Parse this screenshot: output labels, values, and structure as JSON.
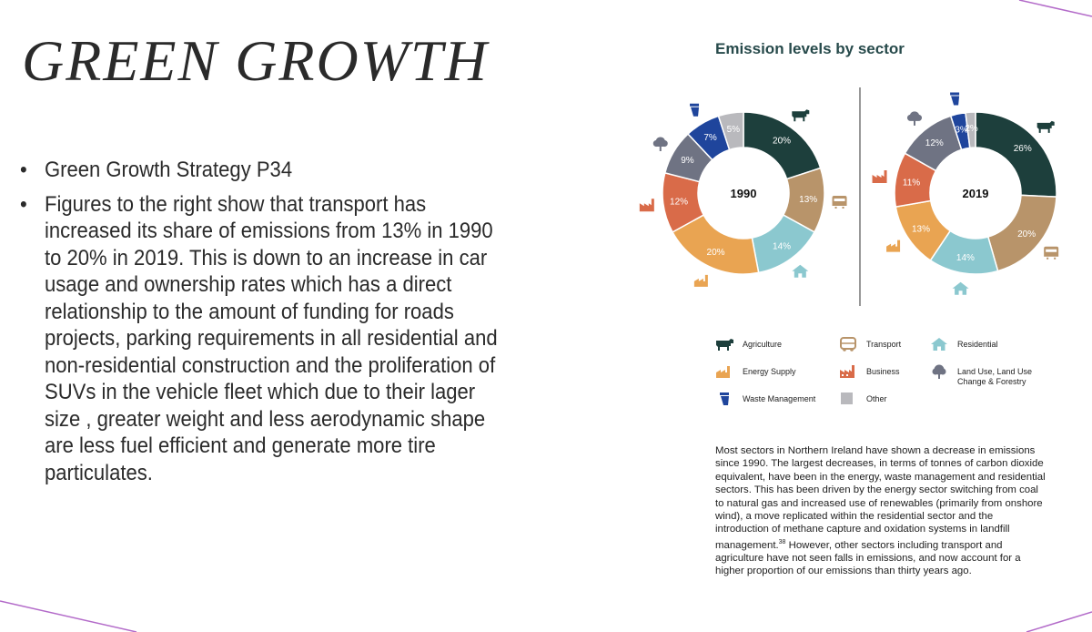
{
  "title": "GREEN GROWTH",
  "bullets": [
    "Green Growth Strategy P34",
    "Figures to the right show that transport has increased its share of emissions from 13% in 1990 to 20% in 2019. This is down to an increase in car usage and ownership rates which has a direct relationship to the amount of funding for roads projects, parking requirements in all residential and non-residential construction and the proliferation of SUVs in the vehicle fleet which due to their lager size , greater weight and less aerodynamic shape are less fuel efficient and generate more tire particulates."
  ],
  "bullet_symbol": "•",
  "colors": {
    "agriculture": "#1d3f3c",
    "transport": "#b8946a",
    "residential": "#8bc8cf",
    "energy_supply": "#e9a452",
    "business": "#d96b49",
    "land_use": "#6f7383",
    "waste_management": "#1f459c",
    "other": "#b9b9bd",
    "accent_line": "#b36bc9"
  },
  "chart_data": {
    "type": "pie",
    "title": "Emission levels by sector",
    "categories": [
      "Agriculture",
      "Transport",
      "Residential",
      "Energy Supply",
      "Business",
      "Land Use, Land Use Change & Forestry",
      "Waste Management",
      "Other"
    ],
    "series": [
      {
        "name": "1990",
        "values": [
          20,
          13,
          14,
          20,
          12,
          9,
          7,
          5
        ],
        "labels": [
          "20%",
          "13%",
          "14%",
          "20%",
          "12%",
          "9%",
          "7%",
          "5%"
        ]
      },
      {
        "name": "2019",
        "values": [
          26,
          20,
          14,
          13,
          11,
          12,
          3,
          2
        ],
        "labels": [
          "26%",
          "20%",
          "14%",
          "13%",
          "11%",
          "12%",
          "3%",
          "2%"
        ]
      }
    ]
  },
  "legend": {
    "agriculture": "Agriculture",
    "transport": "Transport",
    "residential": "Residential",
    "energy_supply": "Energy Supply",
    "business": "Business",
    "land_use": "Land Use, Land Use Change & Forestry",
    "waste_management": "Waste Management",
    "other": "Other"
  },
  "paragraph": {
    "before": "Most sectors in Northern Ireland have shown a decrease in emissions since 1990. The largest decreases, in terms of tonnes of carbon dioxide equivalent, have been in the energy, waste management and residential sectors. This has been driven by the energy sector switching from coal to natural gas and increased use of renewables (primarily from onshore wind), a move replicated within the residential sector and the introduction of methane capture and oxidation systems in landfill management.",
    "footnote": "38",
    "after": " However, other sectors including transport and agriculture have not seen falls in emissions, and now account for a higher proportion of our emissions than thirty years ago."
  }
}
